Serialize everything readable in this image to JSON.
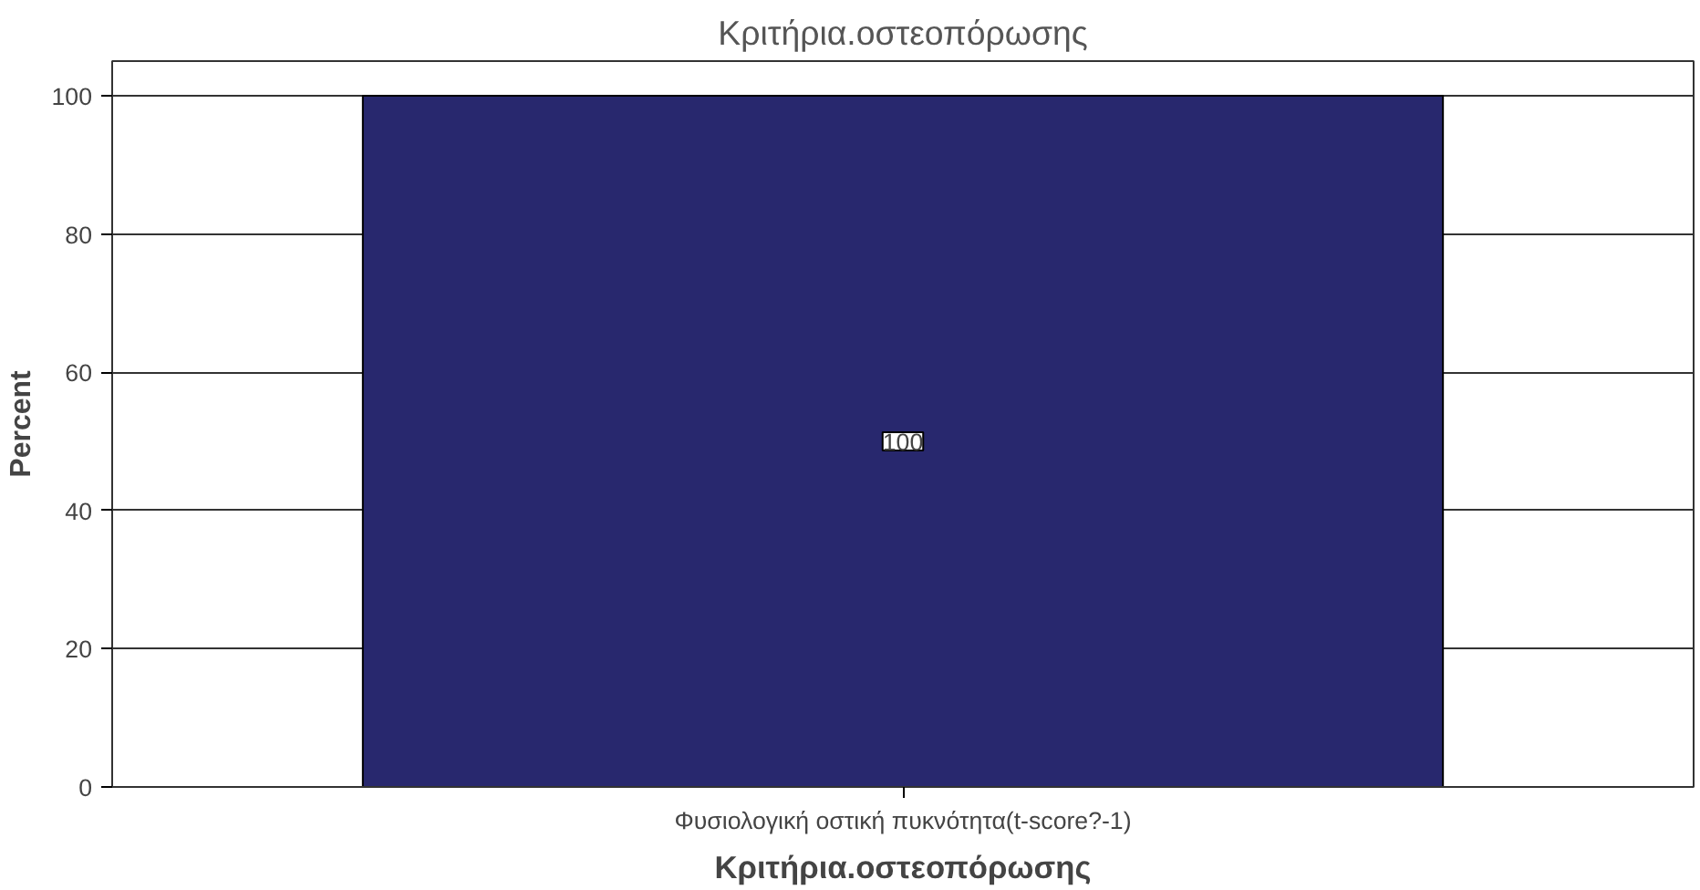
{
  "chart_data": {
    "type": "bar",
    "title": "Κριτήρια.οστεοπόρωσης",
    "xlabel": "Κριτήρια.οστεοπόρωσης",
    "ylabel": "Percent",
    "categories": [
      "Φυσιολογική οστική πυκνότητα(t-score?-1)"
    ],
    "values": [
      100
    ],
    "color": "#28286e",
    "ylim": [
      0,
      105
    ],
    "yticks": [
      0,
      20,
      40,
      60,
      80,
      100
    ],
    "grid": "y",
    "data_labels": true
  }
}
